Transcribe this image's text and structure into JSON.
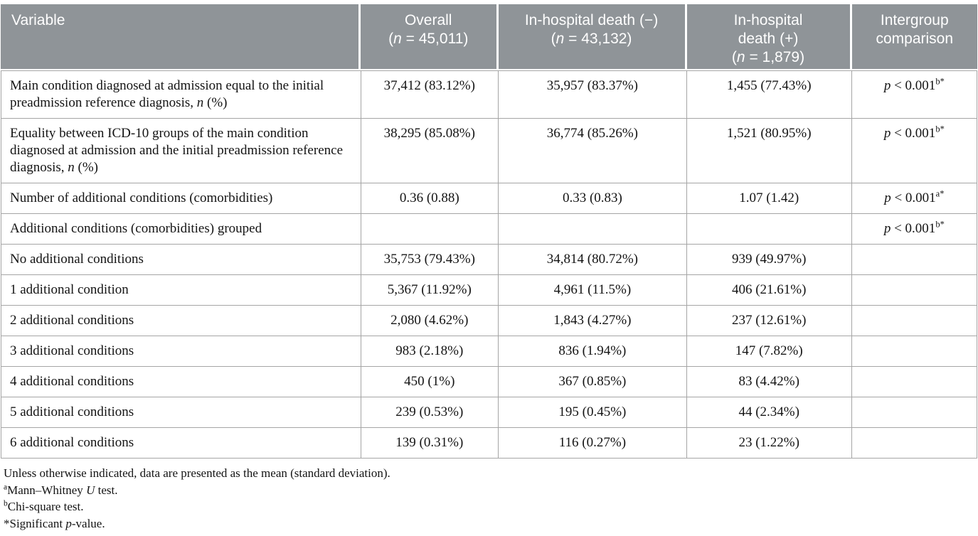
{
  "table": {
    "header": {
      "variable": {
        "label": "Variable"
      },
      "overall": {
        "title": "Overall",
        "count_open": "(",
        "count_n": "n",
        "count_rest": " = 45,011)"
      },
      "death_negative": {
        "title": "In-hospital death (−)",
        "count_open": "(",
        "count_n": "n",
        "count_rest": " = 43,132)"
      },
      "death_positive": {
        "title_line1": "In-hospital",
        "title_line2": "death (+)",
        "count_open": "(",
        "count_n": "n",
        "count_rest": " = 1,879)"
      },
      "intergroup": {
        "title_line1": "Intergroup",
        "title_line2": "comparison"
      }
    },
    "rows": [
      {
        "variable": {
          "pre": "Main condition diagnosed at admission equal to the initial preadmission reference diagnosis, ",
          "italic": "n",
          "post": " (%)"
        },
        "overall": "37,412 (83.12%)",
        "death_negative": "35,957 (83.37%)",
        "death_positive": "1,455 (77.43%)",
        "p": {
          "italic": "p",
          "text": " < 0.001",
          "sup": "b*"
        }
      },
      {
        "variable": {
          "pre": "Equality between ICD-10 groups of the main condition diagnosed at admission and the initial preadmission reference diagnosis, ",
          "italic": "n",
          "post": " (%)"
        },
        "overall": "38,295 (85.08%)",
        "death_negative": "36,774 (85.26%)",
        "death_positive": "1,521 (80.95%)",
        "p": {
          "italic": "p",
          "text": " < 0.001",
          "sup": "b*"
        }
      },
      {
        "variable": {
          "pre": "Number of additional conditions (comorbidities)",
          "italic": "",
          "post": ""
        },
        "overall": "0.36 (0.88)",
        "death_negative": "0.33 (0.83)",
        "death_positive": "1.07 (1.42)",
        "p": {
          "italic": "p",
          "text": " < 0.001",
          "sup": "a*"
        }
      },
      {
        "variable": {
          "pre": "Additional conditions (comorbidities) grouped",
          "italic": "",
          "post": ""
        },
        "overall": "",
        "death_negative": "",
        "death_positive": "",
        "p": {
          "italic": "p",
          "text": " < 0.001",
          "sup": "b*"
        }
      },
      {
        "variable": {
          "pre": "No additional conditions",
          "italic": "",
          "post": ""
        },
        "overall": "35,753 (79.43%)",
        "death_negative": "34,814 (80.72%)",
        "death_positive": "939 (49.97%)",
        "p": {
          "italic": "",
          "text": "",
          "sup": ""
        }
      },
      {
        "variable": {
          "pre": "1 additional condition",
          "italic": "",
          "post": ""
        },
        "overall": "5,367 (11.92%)",
        "death_negative": "4,961 (11.5%)",
        "death_positive": "406 (21.61%)",
        "p": {
          "italic": "",
          "text": "",
          "sup": ""
        }
      },
      {
        "variable": {
          "pre": "2 additional conditions",
          "italic": "",
          "post": ""
        },
        "overall": "2,080 (4.62%)",
        "death_negative": "1,843 (4.27%)",
        "death_positive": "237 (12.61%)",
        "p": {
          "italic": "",
          "text": "",
          "sup": ""
        }
      },
      {
        "variable": {
          "pre": "3 additional conditions",
          "italic": "",
          "post": ""
        },
        "overall": "983 (2.18%)",
        "death_negative": "836 (1.94%)",
        "death_positive": "147 (7.82%)",
        "p": {
          "italic": "",
          "text": "",
          "sup": ""
        }
      },
      {
        "variable": {
          "pre": "4 additional conditions",
          "italic": "",
          "post": ""
        },
        "overall": "450 (1%)",
        "death_negative": "367 (0.85%)",
        "death_positive": "83 (4.42%)",
        "p": {
          "italic": "",
          "text": "",
          "sup": ""
        }
      },
      {
        "variable": {
          "pre": "5 additional conditions",
          "italic": "",
          "post": ""
        },
        "overall": "239 (0.53%)",
        "death_negative": "195 (0.45%)",
        "death_positive": "44 (2.34%)",
        "p": {
          "italic": "",
          "text": "",
          "sup": ""
        }
      },
      {
        "variable": {
          "pre": "6 additional conditions",
          "italic": "",
          "post": ""
        },
        "overall": "139 (0.31%)",
        "death_negative": "116 (0.27%)",
        "death_positive": "23 (1.22%)",
        "p": {
          "italic": "",
          "text": "",
          "sup": ""
        }
      }
    ],
    "footnotes": [
      {
        "sup": "",
        "pre": "Unless otherwise indicated, data are presented as the mean (standard deviation).",
        "italic": "",
        "post": ""
      },
      {
        "sup": "a",
        "pre": "Mann–Whitney ",
        "italic": "U",
        "post": " test."
      },
      {
        "sup": "b",
        "pre": "Chi-square test.",
        "italic": "",
        "post": ""
      },
      {
        "sup": "",
        "pre": "*Significant ",
        "italic": "p",
        "post": "-value."
      }
    ],
    "colors": {
      "header_background": "#8f9498",
      "header_text": "#ffffff",
      "border": "#a5a5a5"
    }
  }
}
